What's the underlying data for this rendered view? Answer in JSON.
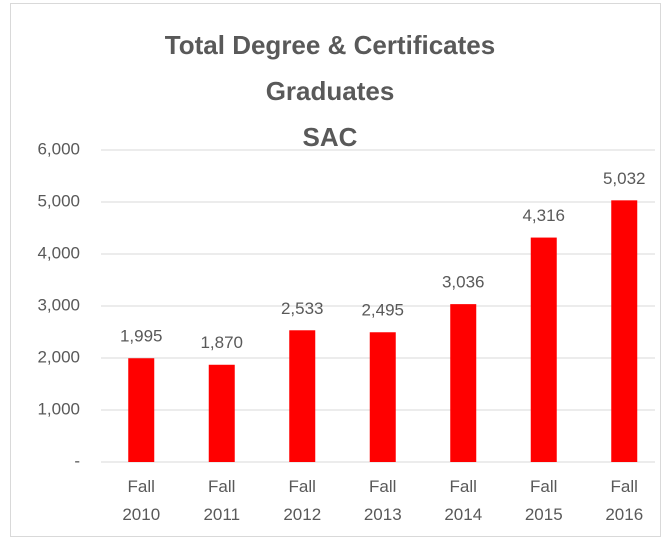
{
  "chart_data": {
    "type": "bar",
    "title": [
      "Total Degree & Certificates",
      "Graduates",
      "SAC"
    ],
    "categories": [
      "Fall 2010",
      "Fall 2011",
      "Fall 2012",
      "Fall 2013",
      "Fall 2014",
      "Fall 2015",
      "Fall 2016"
    ],
    "values": [
      1995,
      1870,
      2533,
      2495,
      3036,
      4316,
      5032
    ],
    "value_labels": [
      "1,995",
      "1,870",
      "2,533",
      "2,495",
      "3,036",
      "4,316",
      "5,032"
    ],
    "color": "#ff0000",
    "ylim": [
      0,
      6000
    ],
    "yticks": [
      {
        "value": 0,
        "label": "-"
      },
      {
        "value": 1000,
        "label": "1,000"
      },
      {
        "value": 2000,
        "label": "2,000"
      },
      {
        "value": 3000,
        "label": "3,000"
      },
      {
        "value": 4000,
        "label": "4,000"
      },
      {
        "value": 5000,
        "label": "5,000"
      },
      {
        "value": 6000,
        "label": "6,000"
      }
    ],
    "grid": true
  }
}
